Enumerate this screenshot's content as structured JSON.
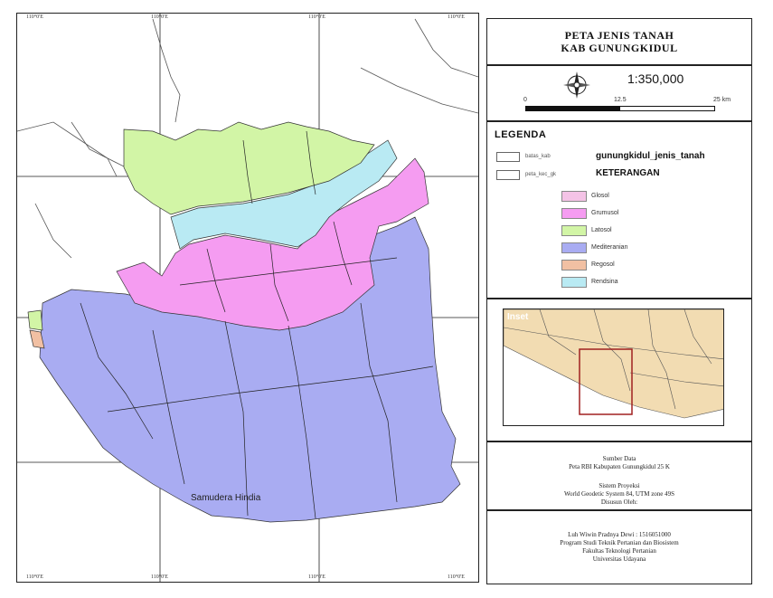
{
  "title": {
    "line1": "PETA JENIS TANAH",
    "line2": "KAB GUNUNGKIDUL"
  },
  "scale": {
    "ratio": "1:350,000",
    "labels": [
      "0",
      "12.5",
      "25 km"
    ]
  },
  "legend": {
    "heading": "LEGENDA",
    "layers": [
      {
        "small": "batas_kab",
        "big": "gunungkidul_jenis_tanah"
      },
      {
        "small": "peta_kec_gk",
        "big": "KETERANGAN"
      }
    ],
    "soils": [
      {
        "label": "Glosol",
        "color": "#f4c3e6"
      },
      {
        "label": "Grumusol",
        "color": "#f59cf1"
      },
      {
        "label": "Latosol",
        "color": "#d2f5a6"
      },
      {
        "label": "Mediteranian",
        "color": "#a9acf2"
      },
      {
        "label": "Regosol",
        "color": "#f1c0a3"
      },
      {
        "label": "Rendsina",
        "color": "#b9eaf3"
      }
    ]
  },
  "inset": {
    "label": "Inset"
  },
  "map": {
    "sea_label": "Samudera Hindia",
    "tick_label": "110°0'E"
  },
  "source": {
    "heading": "Sumber Data",
    "text": "Peta RBI Kabupaten Gunungkidul 25 K",
    "proj_heading": "Sistem Proyeksi",
    "proj_text": "World Geodetic System 84, UTM zone 49S",
    "by": "Disusun Oleh:"
  },
  "credit": {
    "name": "Luh Wiwin Pradnya Dewi : 1516051000",
    "dept": "Program Studi Teknik Pertanian dan Biosistem",
    "faculty": "Fakultas Teknologi Pertanian",
    "university": "Universitas Udayana"
  }
}
